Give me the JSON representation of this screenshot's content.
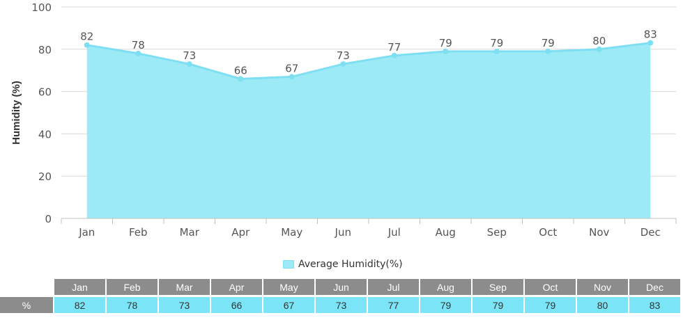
{
  "chart_data": {
    "type": "area",
    "categories": [
      "Jan",
      "Feb",
      "Mar",
      "Apr",
      "May",
      "Jun",
      "Jul",
      "Aug",
      "Sep",
      "Oct",
      "Nov",
      "Dec"
    ],
    "series": [
      {
        "name": "Average Humidity(%)",
        "values": [
          82,
          78,
          73,
          66,
          67,
          73,
          77,
          79,
          79,
          79,
          80,
          83
        ]
      }
    ],
    "ylabel": "Humidity (%)",
    "ylim": [
      0,
      100
    ],
    "yticks": [
      0,
      20,
      40,
      60,
      80,
      100
    ],
    "grid": true,
    "legend": "bottom-center",
    "colors": {
      "fill": "#9deaf7",
      "line": "#7fdff2",
      "point": "#7fdff2"
    }
  },
  "legend": {
    "label": "Average Humidity(%)"
  },
  "table": {
    "row_label": "%",
    "months": [
      "Jan",
      "Feb",
      "Mar",
      "Apr",
      "May",
      "Jun",
      "Jul",
      "Aug",
      "Sep",
      "Oct",
      "Nov",
      "Dec"
    ],
    "values": [
      "82",
      "78",
      "73",
      "66",
      "67",
      "73",
      "77",
      "79",
      "79",
      "79",
      "80",
      "83"
    ]
  }
}
